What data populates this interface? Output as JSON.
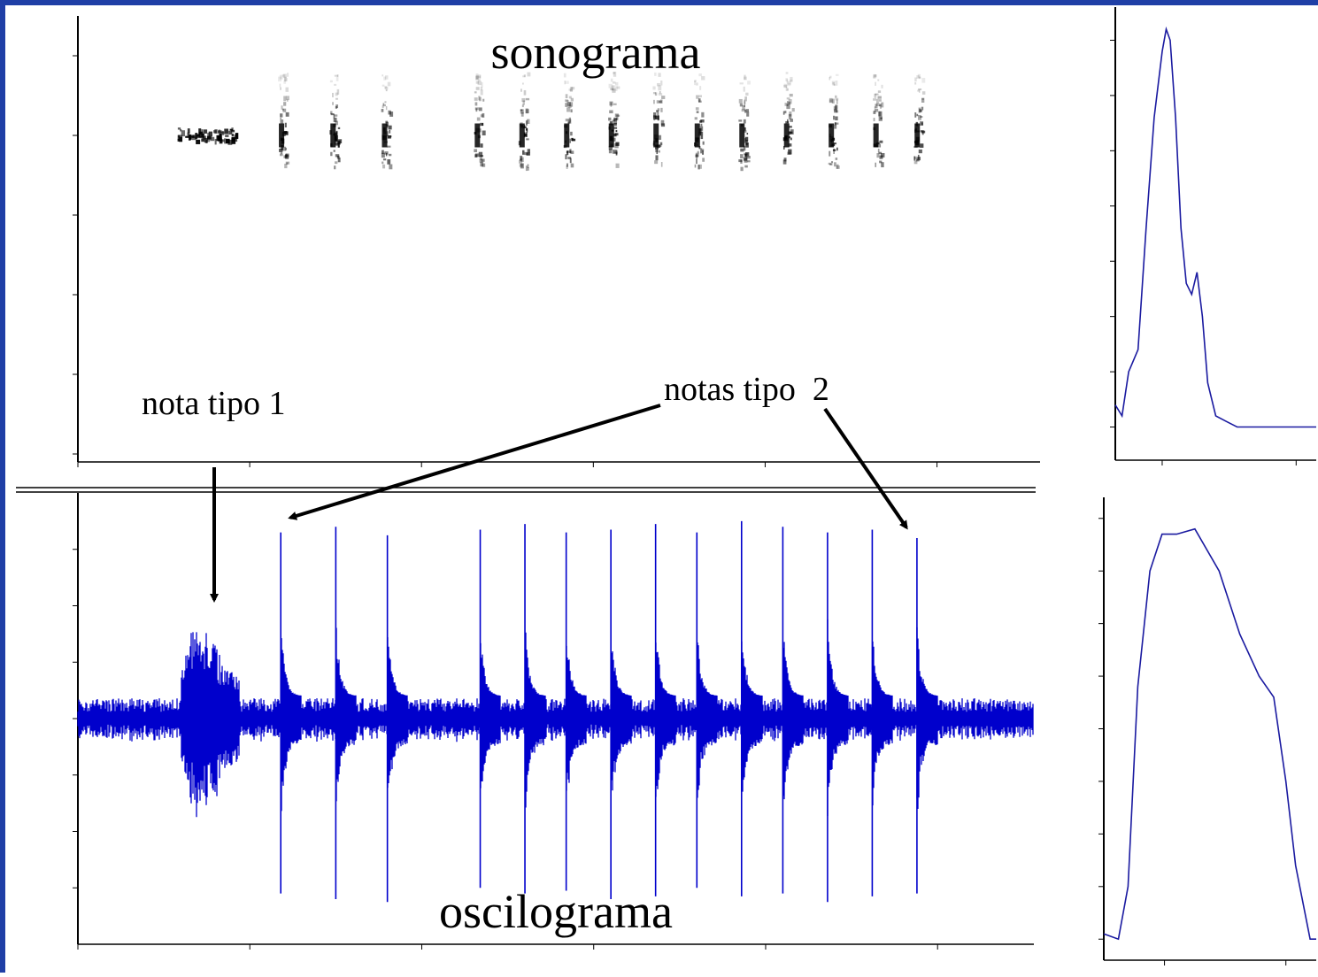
{
  "frame": {
    "border_color": "#1f3fa6"
  },
  "annotations": {
    "sonograma": "sonograma",
    "oscilograma": "oscilograma",
    "nota_tipo_1": "nota tipo 1",
    "notas_tipo_2": "notas tipo  2"
  },
  "colors": {
    "wave": "#0000cc",
    "spectrum_line": "#1a1aa0",
    "sono_ink": "#000000",
    "arrow": "#000000"
  },
  "chart_data": [
    {
      "id": "sonogram",
      "type": "heatmap",
      "title": "sonograma",
      "xunit": "s",
      "yunit": "kHz",
      "xlim": [
        0.0,
        2.8
      ],
      "ylim": [
        0.9,
        6.5
      ],
      "xticks": [
        "0.0",
        "0.5",
        "1.0",
        "1.5",
        "2.0",
        "2.5"
      ],
      "yticks": [
        "1.0",
        "2.0",
        "3.0",
        "4.0",
        "5.0",
        "6.0"
      ],
      "notes_type1": [
        {
          "t_start": 0.29,
          "t_end": 0.46,
          "freq": 5.0
        }
      ],
      "notes_type2_times": [
        0.59,
        0.74,
        0.89,
        1.16,
        1.29,
        1.42,
        1.55,
        1.68,
        1.8,
        1.93,
        2.06,
        2.19,
        2.32,
        2.44
      ],
      "note_freq_range": [
        4.6,
        5.8
      ]
    },
    {
      "id": "oscillogram",
      "type": "line",
      "title": "oscilograma",
      "xunit": "s",
      "yunit": "nPa",
      "xlim": [
        0.0,
        2.78
      ],
      "ylim": [
        -80,
        80
      ],
      "xticks": [
        "0.0",
        "0.5",
        "1.0",
        "1.5",
        "2.0",
        "2.5"
      ],
      "yticks": [
        "-60",
        "-40",
        "-20",
        "0",
        "20",
        "40",
        "60"
      ],
      "type1_burst": {
        "t_start": 0.3,
        "t_end": 0.47,
        "peak": 34
      },
      "type2_pulses": [
        {
          "t": 0.59,
          "pos": 66,
          "neg": -62
        },
        {
          "t": 0.75,
          "pos": 68,
          "neg": -64
        },
        {
          "t": 0.9,
          "pos": 65,
          "neg": -65
        },
        {
          "t": 1.17,
          "pos": 67,
          "neg": -60
        },
        {
          "t": 1.3,
          "pos": 69,
          "neg": -62
        },
        {
          "t": 1.42,
          "pos": 66,
          "neg": -61
        },
        {
          "t": 1.55,
          "pos": 67,
          "neg": -64
        },
        {
          "t": 1.68,
          "pos": 69,
          "neg": -63
        },
        {
          "t": 1.8,
          "pos": 66,
          "neg": -60
        },
        {
          "t": 1.93,
          "pos": 70,
          "neg": -63
        },
        {
          "t": 2.05,
          "pos": 68,
          "neg": -62
        },
        {
          "t": 2.18,
          "pos": 66,
          "neg": -65
        },
        {
          "t": 2.31,
          "pos": 67,
          "neg": -63
        },
        {
          "t": 2.44,
          "pos": 64,
          "neg": -62
        }
      ],
      "noise_level": 6
    },
    {
      "id": "spectrum-top",
      "type": "line",
      "xunit": "kHz",
      "yunit": "dB",
      "xlim": [
        4.65,
        6.15
      ],
      "ylim": [
        -123,
        -82
      ],
      "xticks": [
        "5",
        "6"
      ],
      "yticks": [
        "-85",
        "-90",
        "-95",
        "-100",
        "-105",
        "-110",
        "-115",
        "-120"
      ],
      "x": [
        4.65,
        4.7,
        4.75,
        4.82,
        4.88,
        4.94,
        5.0,
        5.03,
        5.06,
        5.1,
        5.14,
        5.18,
        5.22,
        5.26,
        5.3,
        5.34,
        5.4,
        5.48,
        5.56,
        6.15
      ],
      "y": [
        -118,
        -119,
        -115,
        -113,
        -102,
        -92,
        -86,
        -84,
        -85,
        -92,
        -102,
        -107,
        -108,
        -106,
        -110,
        -116,
        -119,
        -119.5,
        -120,
        -120
      ]
    },
    {
      "id": "spectrum-bottom",
      "type": "line",
      "xunit": "kHz",
      "yunit": "dB",
      "xlim": [
        4.5,
        6.25
      ],
      "ylim": [
        -122,
        -78
      ],
      "xticks": [
        "5",
        "6"
      ],
      "yticks": [
        "-80",
        "-85",
        "-90",
        "-95",
        "-100",
        "-105",
        "-110",
        "-115",
        "-120"
      ],
      "x": [
        4.5,
        4.62,
        4.7,
        4.78,
        4.88,
        4.98,
        5.1,
        5.25,
        5.45,
        5.62,
        5.78,
        5.9,
        6.0,
        6.08,
        6.2,
        6.25
      ],
      "y": [
        -119.5,
        -120,
        -115,
        -96,
        -85,
        -81.5,
        -81.5,
        -81,
        -85,
        -91,
        -95,
        -97,
        -105,
        -113,
        -120,
        -120
      ]
    }
  ]
}
